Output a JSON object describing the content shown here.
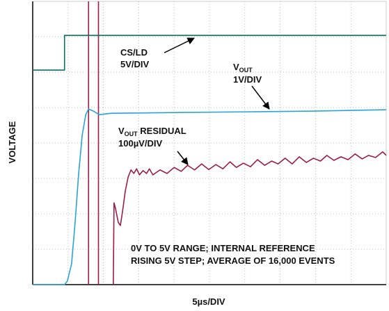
{
  "chart_data": {
    "type": "line",
    "x_label": "5µs/DIV",
    "y_label": "VOLTAGE",
    "xlim": [
      0,
      50
    ],
    "ylim": [
      0,
      8
    ],
    "xticks": [
      0,
      5,
      10,
      15,
      20,
      25,
      30,
      35,
      40,
      45,
      50
    ],
    "yticks": [
      0,
      1,
      2,
      3,
      4,
      5,
      6,
      7,
      8
    ],
    "grid": true,
    "cursors": {
      "color": "#9b1b4a",
      "x": [
        7.9,
        9.3
      ]
    },
    "series": [
      {
        "color": "#0b6e66",
        "x": [
          0,
          4.5,
          4.5,
          50
        ],
        "values": [
          6.06,
          6.06,
          7.04,
          7.04
        ]
      },
      {
        "color": "#29a3d6",
        "x": [
          0,
          4.5,
          4.9,
          5.5,
          6.0,
          6.5,
          7.0,
          7.5,
          7.9,
          8.6,
          9.4,
          11.1,
          20.0,
          29.8,
          39.7,
          50
        ],
        "values": [
          0,
          0,
          0.1,
          0.59,
          1.76,
          3.14,
          4.22,
          4.8,
          4.96,
          4.9,
          4.8,
          4.84,
          4.86,
          4.88,
          4.9,
          4.94
        ]
      },
      {
        "color": "#9b1b4a",
        "x": [
          11.4,
          11.5,
          11.7,
          12.1,
          12.4,
          12.7,
          13.1,
          13.5,
          13.9,
          14.3,
          14.7,
          15.1,
          15.6,
          16.1,
          16.5,
          17.0,
          18.0,
          19.0,
          20.0,
          21.0,
          21.9,
          22.9,
          23.9,
          24.9,
          25.9,
          26.9,
          27.9,
          28.8,
          29.8,
          30.8,
          31.8,
          32.8,
          33.8,
          34.7,
          35.7,
          36.7,
          37.7,
          38.7,
          39.7,
          40.7,
          41.6,
          42.6,
          43.6,
          44.6,
          45.6,
          46.6,
          47.5,
          48.5,
          49.5,
          50
        ],
        "values": [
          0,
          2.31,
          2.16,
          1.76,
          1.67,
          2.06,
          2.65,
          3.04,
          3.24,
          3.14,
          3.27,
          3.1,
          3.22,
          3.14,
          3.27,
          3.1,
          3.24,
          3.14,
          3.31,
          3.2,
          3.37,
          3.24,
          3.41,
          3.25,
          3.39,
          3.27,
          3.47,
          3.31,
          3.43,
          3.33,
          3.53,
          3.37,
          3.49,
          3.41,
          3.57,
          3.41,
          3.61,
          3.45,
          3.57,
          3.49,
          3.65,
          3.51,
          3.61,
          3.53,
          3.69,
          3.55,
          3.65,
          3.59,
          3.75,
          3.65
        ]
      }
    ],
    "annotations": {
      "cs_name": "CS/LD",
      "cs_scale": "5V/DIV",
      "vout_name": {
        "main": "V",
        "sub": "OUT"
      },
      "vout_scale": "1V/DIV",
      "residual_name": {
        "main": "V",
        "sub": "OUT",
        "rest": " RESIDUAL"
      },
      "residual_scale": "100µV/DIV",
      "note_1": "0V TO 5V RANGE; INTERNAL REFERENCE",
      "note_2": "RISING 5V STEP; AVERAGE OF 16,000 EVENTS"
    }
  }
}
